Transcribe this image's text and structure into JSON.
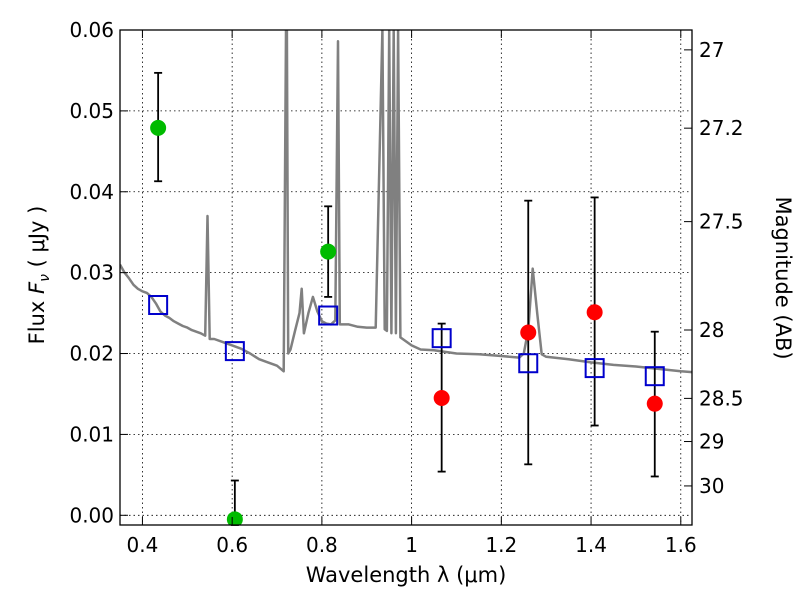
{
  "chart_data": {
    "type": "scatter",
    "xlabel": "Wavelength  λ (μm)",
    "ylabel": "Flux  F_ν  ( μJy )",
    "y2label": "Magnitude (AB)",
    "xlim": [
      0.35,
      1.625
    ],
    "ylim": [
      -0.0012,
      0.06
    ],
    "grid": true,
    "x_ticks": [
      0.4,
      0.6,
      0.8,
      1.0,
      1.2,
      1.4,
      1.6
    ],
    "x_tick_labels": [
      "0.4",
      "0.6",
      "0.8",
      "1",
      "1.2",
      "1.4",
      "1.6"
    ],
    "y_ticks": [
      0.0,
      0.01,
      0.02,
      0.03,
      0.04,
      0.05,
      0.06
    ],
    "y_tick_labels": [
      "0.00",
      "0.01",
      "0.02",
      "0.03",
      "0.04",
      "0.05",
      "0.06"
    ],
    "y2_ticks": [
      {
        "mag": 27,
        "label": "27"
      },
      {
        "mag": 27.2,
        "label": "27.2"
      },
      {
        "mag": 27.5,
        "label": "27.5"
      },
      {
        "mag": 28,
        "label": "28"
      },
      {
        "mag": 28.5,
        "label": "28.5"
      },
      {
        "mag": 29,
        "label": "29"
      },
      {
        "mag": 30,
        "label": "30"
      }
    ],
    "series": [
      {
        "marker": "circle",
        "color": "#00bb00",
        "points": [
          {
            "x": 0.435,
            "y": 0.0479,
            "err_low": 0.0413,
            "err_high": 0.0547
          },
          {
            "x": 0.606,
            "y": -0.0005,
            "err_low": -0.0012,
            "err_high": 0.0043
          },
          {
            "x": 0.814,
            "y": 0.0326,
            "err_low": 0.027,
            "err_high": 0.0382
          }
        ]
      },
      {
        "marker": "circle",
        "color": "#ff0000",
        "points": [
          {
            "x": 1.067,
            "y": 0.0145,
            "err_low": 0.0054,
            "err_high": 0.0237
          },
          {
            "x": 1.26,
            "y": 0.0226,
            "err_low": 0.0063,
            "err_high": 0.0389
          },
          {
            "x": 1.408,
            "y": 0.0251,
            "err_low": 0.0111,
            "err_high": 0.0393
          },
          {
            "x": 1.542,
            "y": 0.0138,
            "err_low": 0.0048,
            "err_high": 0.0227
          }
        ]
      },
      {
        "marker": "square",
        "color": "#0000cc",
        "points": [
          {
            "x": 0.435,
            "y": 0.026
          },
          {
            "x": 0.606,
            "y": 0.0203
          },
          {
            "x": 0.814,
            "y": 0.0247
          },
          {
            "x": 1.067,
            "y": 0.0219
          },
          {
            "x": 1.26,
            "y": 0.0188
          },
          {
            "x": 1.408,
            "y": 0.0182
          },
          {
            "x": 1.542,
            "y": 0.0172
          }
        ]
      }
    ],
    "model_spectrum": {
      "type": "line",
      "color": "#808080",
      "points": [
        [
          0.35,
          0.031
        ],
        [
          0.36,
          0.03
        ],
        [
          0.37,
          0.0293
        ],
        [
          0.38,
          0.0285
        ],
        [
          0.39,
          0.028
        ],
        [
          0.4,
          0.0277
        ],
        [
          0.41,
          0.0275
        ],
        [
          0.42,
          0.027
        ],
        [
          0.43,
          0.0262
        ],
        [
          0.44,
          0.0252
        ],
        [
          0.45,
          0.0247
        ],
        [
          0.46,
          0.0244
        ],
        [
          0.47,
          0.024
        ],
        [
          0.48,
          0.0237
        ],
        [
          0.49,
          0.0234
        ],
        [
          0.5,
          0.0232
        ],
        [
          0.51,
          0.0229
        ],
        [
          0.52,
          0.0227
        ],
        [
          0.53,
          0.0225
        ],
        [
          0.54,
          0.0222
        ],
        [
          0.545,
          0.037
        ],
        [
          0.55,
          0.0218
        ],
        [
          0.56,
          0.0218
        ],
        [
          0.58,
          0.0214
        ],
        [
          0.6,
          0.021
        ],
        [
          0.62,
          0.0206
        ],
        [
          0.64,
          0.02
        ],
        [
          0.66,
          0.0193
        ],
        [
          0.68,
          0.0189
        ],
        [
          0.7,
          0.0185
        ],
        [
          0.715,
          0.0178
        ],
        [
          0.72,
          0.06
        ],
        [
          0.722,
          0.06
        ],
        [
          0.725,
          0.02
        ],
        [
          0.73,
          0.0205
        ],
        [
          0.74,
          0.0228
        ],
        [
          0.75,
          0.025
        ],
        [
          0.755,
          0.028
        ],
        [
          0.76,
          0.0225
        ],
        [
          0.77,
          0.025
        ],
        [
          0.78,
          0.027
        ],
        [
          0.79,
          0.0252
        ],
        [
          0.8,
          0.024
        ],
        [
          0.81,
          0.0237
        ],
        [
          0.82,
          0.0236
        ],
        [
          0.83,
          0.0241
        ],
        [
          0.836,
          0.0586
        ],
        [
          0.84,
          0.0236
        ],
        [
          0.86,
          0.0236
        ],
        [
          0.88,
          0.0233
        ],
        [
          0.9,
          0.0232
        ],
        [
          0.92,
          0.0232
        ],
        [
          0.935,
          0.06
        ],
        [
          0.94,
          0.023
        ],
        [
          0.945,
          0.0228
        ],
        [
          0.95,
          0.06
        ],
        [
          0.955,
          0.0225
        ],
        [
          0.96,
          0.06
        ],
        [
          0.965,
          0.0225
        ],
        [
          0.97,
          0.06
        ],
        [
          0.975,
          0.022
        ],
        [
          1.0,
          0.021
        ],
        [
          1.02,
          0.0205
        ],
        [
          1.05,
          0.0204
        ],
        [
          1.1,
          0.02
        ],
        [
          1.15,
          0.0199
        ],
        [
          1.2,
          0.0197
        ],
        [
          1.24,
          0.0195
        ],
        [
          1.25,
          0.02
        ],
        [
          1.26,
          0.023
        ],
        [
          1.27,
          0.0305
        ],
        [
          1.28,
          0.025
        ],
        [
          1.29,
          0.0199
        ],
        [
          1.3,
          0.0196
        ],
        [
          1.35,
          0.0193
        ],
        [
          1.4,
          0.0189
        ],
        [
          1.45,
          0.0186
        ],
        [
          1.5,
          0.0184
        ],
        [
          1.55,
          0.0181
        ],
        [
          1.6,
          0.0178
        ],
        [
          1.625,
          0.0177
        ]
      ]
    }
  }
}
